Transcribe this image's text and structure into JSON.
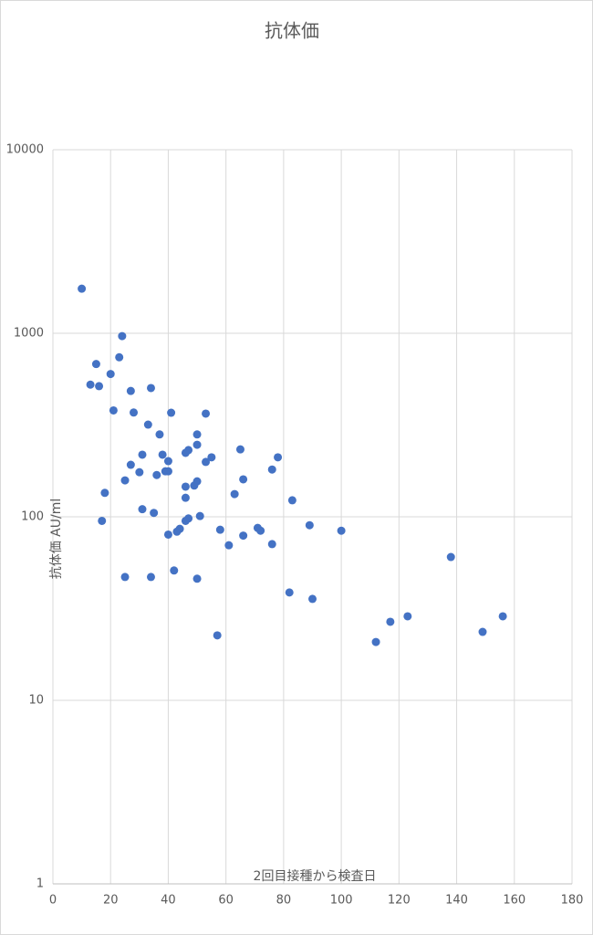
{
  "chart_data": {
    "type": "scatter",
    "title": "抗体価",
    "x_label": "2回目接種から検査日",
    "y_label": "抗体価 AU/ml",
    "yscale": "log",
    "grid": true,
    "color": "#4472c4",
    "xlim": [
      0,
      180
    ],
    "xticks": [
      0,
      20,
      40,
      60,
      80,
      100,
      120,
      140,
      160,
      180
    ],
    "ylim": [
      1,
      10000
    ],
    "yticks": [
      1,
      10,
      100,
      1000,
      10000
    ],
    "x": [
      10,
      13,
      15,
      16,
      17,
      18,
      20,
      21,
      23,
      24,
      25,
      25,
      27,
      27,
      28,
      30,
      31,
      31,
      33,
      34,
      34,
      35,
      36,
      37,
      38,
      39,
      40,
      40,
      40,
      41,
      42,
      43,
      44,
      46,
      46,
      46,
      46,
      47,
      47,
      49,
      50,
      50,
      50,
      50,
      51,
      53,
      53,
      55,
      57,
      58,
      61,
      63,
      65,
      66,
      66,
      71,
      72,
      76,
      76,
      78,
      82,
      83,
      89,
      90,
      100,
      112,
      117,
      123,
      138,
      149,
      156
    ],
    "values": [
      1750,
      525,
      680,
      515,
      95,
      135,
      600,
      380,
      740,
      965,
      47,
      158,
      485,
      192,
      370,
      175,
      218,
      110,
      318,
      503,
      47,
      105,
      169,
      281,
      218,
      177,
      177,
      201,
      80,
      369,
      51,
      83,
      86,
      146,
      127,
      223,
      95,
      231,
      98,
      148,
      156,
      281,
      247,
      46,
      101,
      199,
      365,
      211,
      22.6,
      85,
      70,
      133,
      233,
      160,
      79,
      87,
      84,
      181,
      71,
      211,
      38.7,
      123,
      90,
      35.7,
      84,
      20.8,
      26.8,
      28.7,
      60.4,
      23.6,
      28.7
    ]
  }
}
